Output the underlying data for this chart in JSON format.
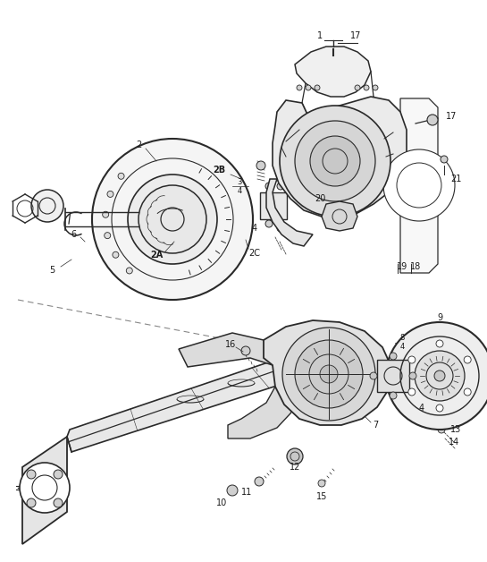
{
  "bg_color": "#ffffff",
  "line_color": "#2a2a2a",
  "fig_width": 5.45,
  "fig_height": 6.28,
  "dpi": 100
}
